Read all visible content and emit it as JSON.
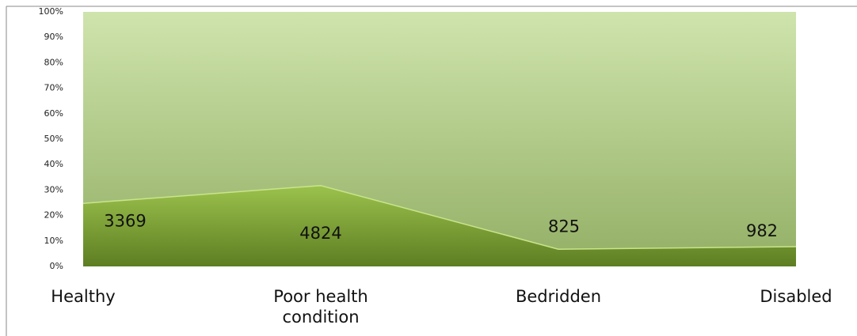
{
  "chart_data": {
    "type": "area",
    "stacked": "percent",
    "categories": [
      "Healthy",
      "Poor health condition",
      "Bedridden",
      "Disabled"
    ],
    "series": [
      {
        "color": "#7fa33a",
        "values": [
          3369,
          4824,
          825,
          982
        ]
      },
      {
        "color": "#b4d08a",
        "values": [
          10100,
          10250,
          10960,
          11290
        ]
      }
    ],
    "value_labels": [
      "3369",
      "4824",
      "825",
      "982"
    ],
    "ylim": [
      0,
      100
    ],
    "yticks": [
      {
        "value": 0,
        "label": "0%"
      },
      {
        "value": 10,
        "label": "10%"
      },
      {
        "value": 20,
        "label": "20%"
      },
      {
        "value": 30,
        "label": "30%"
      },
      {
        "value": 40,
        "label": "40%"
      },
      {
        "value": 50,
        "label": "50%"
      },
      {
        "value": 60,
        "label": "60%"
      },
      {
        "value": 70,
        "label": "70%"
      },
      {
        "value": 80,
        "label": "80%"
      },
      {
        "value": 90,
        "label": "90%"
      },
      {
        "value": {
          "value": 100,
          "label": "100%"
        },
        "label": "100%"
      }
    ]
  }
}
